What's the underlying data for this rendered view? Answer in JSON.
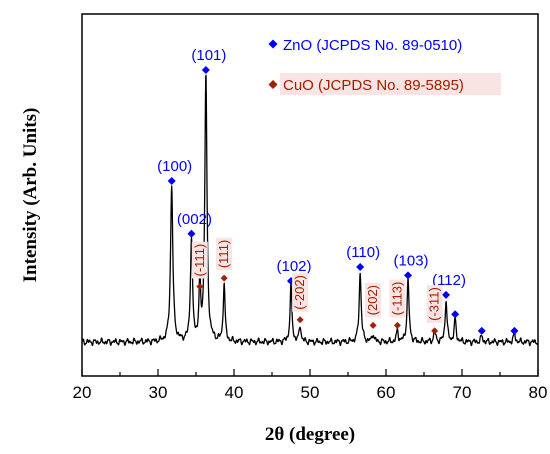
{
  "chart_data": {
    "type": "line",
    "xlabel": "2θ (degree)",
    "ylabel": "Intensity (Arb. Units)",
    "xlim": [
      20,
      80
    ],
    "xticks": [
      20,
      30,
      40,
      50,
      60,
      70,
      80
    ],
    "ylim": [
      0,
      100
    ],
    "grid": false,
    "legend": {
      "placement": "top-right",
      "entries": [
        {
          "label": "ZnO (JCPDS No. 89-0510)",
          "color": "#0000ff",
          "marker": "diamond"
        },
        {
          "label": "CuO (JCPDS No. 89-5895)",
          "color": "#a02000",
          "marker": "diamond"
        }
      ]
    },
    "colors": {
      "pattern": "#000000",
      "zno": "#0000ff",
      "cuo": "#a02000",
      "cuo_label_bg": "#f8e4e4"
    },
    "baseline": 2,
    "peaks": [
      {
        "x": 31.8,
        "height": 56,
        "w": 0.18
      },
      {
        "x": 34.4,
        "height": 37,
        "w": 0.16
      },
      {
        "x": 35.5,
        "height": 20,
        "w": 0.13
      },
      {
        "x": 36.3,
        "height": 96,
        "w": 0.17
      },
      {
        "x": 38.7,
        "height": 21,
        "w": 0.14
      },
      {
        "x": 47.5,
        "height": 20,
        "w": 0.15
      },
      {
        "x": 48.7,
        "height": 6,
        "w": 0.14
      },
      {
        "x": 56.6,
        "height": 25,
        "w": 0.16
      },
      {
        "x": 58.3,
        "height": 3,
        "w": 0.14
      },
      {
        "x": 61.5,
        "height": 4,
        "w": 0.14
      },
      {
        "x": 62.9,
        "height": 22,
        "w": 0.16
      },
      {
        "x": 66.4,
        "height": 4,
        "w": 0.14
      },
      {
        "x": 67.9,
        "height": 15,
        "w": 0.15
      },
      {
        "x": 69.1,
        "height": 8,
        "w": 0.15
      },
      {
        "x": 72.6,
        "height": 2,
        "w": 0.15
      },
      {
        "x": 76.9,
        "height": 3,
        "w": 0.15
      }
    ],
    "zno_markers": [
      {
        "x": 31.8,
        "y": 60,
        "label": "(100)"
      },
      {
        "x": 34.4,
        "y": 41,
        "label": "(002)"
      },
      {
        "x": 36.3,
        "y": 100,
        "label": "(101)"
      },
      {
        "x": 47.5,
        "y": 24,
        "label": "(102)"
      },
      {
        "x": 56.6,
        "y": 29,
        "label": "(110)"
      },
      {
        "x": 62.9,
        "y": 26,
        "label": "(103)"
      },
      {
        "x": 67.9,
        "y": 19,
        "label": "(112)"
      },
      {
        "x": 69.1,
        "y": 12,
        "label": ""
      },
      {
        "x": 72.6,
        "y": 6,
        "label": ""
      },
      {
        "x": 76.9,
        "y": 6,
        "label": ""
      }
    ],
    "cuo_markers": [
      {
        "x": 35.5,
        "y": 22,
        "label": "(-111)"
      },
      {
        "x": 38.7,
        "y": 25,
        "label": "(111)"
      },
      {
        "x": 48.7,
        "y": 10,
        "label": "(-202)"
      },
      {
        "x": 58.3,
        "y": 8,
        "label": "(202)"
      },
      {
        "x": 61.5,
        "y": 8,
        "label": "(-113)"
      },
      {
        "x": 66.4,
        "y": 6,
        "label": "(-311)"
      }
    ]
  }
}
